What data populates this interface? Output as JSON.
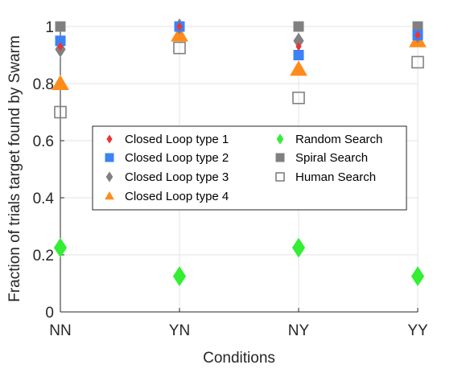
{
  "chart_data": {
    "type": "scatter",
    "title": "",
    "xlabel": "Conditions",
    "ylabel": "Fraction of trials target found by Swarm",
    "categories": [
      "NN",
      "YN",
      "NY",
      "YY"
    ],
    "ylim": [
      0,
      1
    ],
    "yticks": [
      "0",
      "0.2",
      "0.4",
      "0.6",
      "0.8",
      "1"
    ],
    "grid": true,
    "legend_position": "center",
    "series": [
      {
        "name": "Closed Loop type 1",
        "marker": "diamond-filled",
        "color": "#ee3333",
        "values": [
          0.93,
          1.0,
          0.93,
          0.97
        ]
      },
      {
        "name": "Closed Loop type 2",
        "marker": "square-filled",
        "color": "#3b82f6",
        "values": [
          0.95,
          1.0,
          0.9,
          0.97
        ]
      },
      {
        "name": "Closed Loop type 3",
        "marker": "diamond-filled",
        "color": "#808080",
        "values": [
          0.92,
          1.0,
          0.95,
          0.97
        ]
      },
      {
        "name": "Closed Loop type 4",
        "marker": "triangle-filled",
        "color": "#ff8c1a",
        "values": [
          0.8,
          0.97,
          0.85,
          0.95
        ]
      },
      {
        "name": "Random Search",
        "marker": "diamond-filled",
        "color": "#33ee33",
        "values": [
          0.225,
          0.125,
          0.225,
          0.125
        ]
      },
      {
        "name": "Spiral Search",
        "marker": "square-filled",
        "color": "#808080",
        "values": [
          1.0,
          1.0,
          1.0,
          1.0
        ]
      },
      {
        "name": "Human Search",
        "marker": "square-open",
        "color": "#808080",
        "values": [
          0.7,
          0.925,
          0.75,
          0.875
        ]
      }
    ]
  }
}
